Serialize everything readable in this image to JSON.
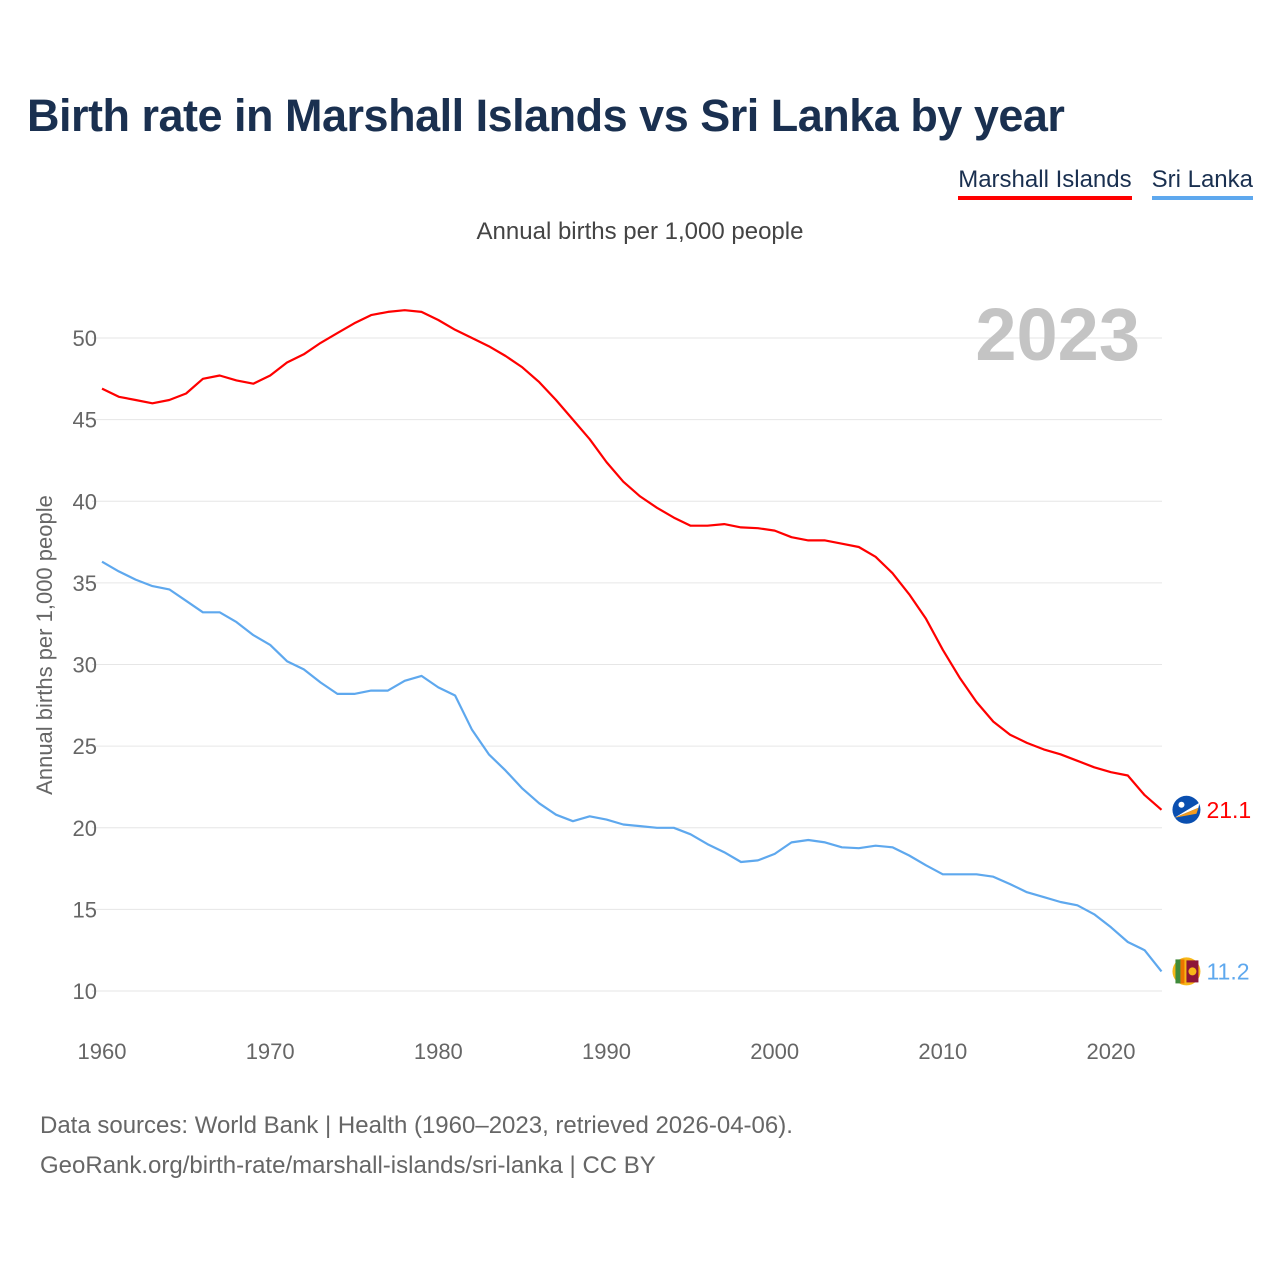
{
  "title": "Birth rate in Marshall Islands vs Sri Lanka by year",
  "subtitle": "Annual births per 1,000 people",
  "year_label": "2023",
  "footer": {
    "line1": "Data sources: World Bank | Health (1960–2023, retrieved 2026-04-06).",
    "line2": "GeoRank.org/birth-rate/marshall-islands/sri-lanka | CC BY"
  },
  "chart_data": {
    "type": "line",
    "title": "Birth rate in Marshall Islands vs Sri Lanka by year",
    "xlabel": "",
    "ylabel": "Annual births per 1,000 people",
    "xlim": [
      1960,
      2023
    ],
    "ylim": [
      8,
      53
    ],
    "xticks": [
      1960,
      1970,
      1980,
      1990,
      2000,
      2010,
      2020
    ],
    "yticks": [
      10,
      15,
      20,
      25,
      30,
      35,
      40,
      45,
      50
    ],
    "grid": true,
    "legend_position": "top-right",
    "x_start": 1960,
    "series": [
      {
        "name": "Marshall Islands",
        "color": "#ff0000",
        "end_label": "21.1",
        "flag": "marshall-islands-flag",
        "values": [
          46.9,
          46.4,
          46.2,
          46.0,
          46.2,
          46.6,
          47.5,
          47.7,
          47.4,
          47.2,
          47.7,
          48.5,
          49.0,
          49.7,
          50.3,
          50.9,
          51.4,
          51.6,
          51.7,
          51.6,
          51.1,
          50.5,
          50.0,
          49.5,
          48.9,
          48.2,
          47.3,
          46.2,
          45.0,
          43.8,
          42.4,
          41.2,
          40.3,
          39.6,
          39.0,
          38.5,
          38.5,
          38.6,
          38.4,
          38.35,
          38.2,
          37.8,
          37.6,
          37.6,
          37.4,
          37.2,
          36.6,
          35.6,
          34.3,
          32.8,
          30.9,
          29.2,
          27.7,
          26.5,
          25.7,
          25.2,
          24.8,
          24.5,
          24.1,
          23.7,
          23.4,
          23.2,
          22.0,
          21.1
        ]
      },
      {
        "name": "Sri Lanka",
        "color": "#5ea8ee",
        "end_label": "11.2",
        "flag": "sri-lanka-flag",
        "values": [
          36.3,
          35.7,
          35.2,
          34.8,
          34.6,
          33.9,
          33.2,
          33.2,
          32.6,
          31.8,
          31.2,
          30.2,
          29.7,
          28.9,
          28.2,
          28.2,
          28.4,
          28.4,
          29.0,
          29.3,
          28.6,
          28.1,
          26.0,
          24.5,
          23.5,
          22.4,
          21.5,
          20.8,
          20.4,
          20.7,
          20.5,
          20.2,
          20.1,
          20.0,
          20.0,
          19.6,
          19.0,
          18.5,
          17.9,
          18.0,
          18.4,
          19.1,
          19.25,
          19.1,
          18.8,
          18.75,
          18.9,
          18.8,
          18.3,
          17.7,
          17.15,
          17.15,
          17.15,
          17.0,
          16.55,
          16.05,
          15.75,
          15.45,
          15.25,
          14.7,
          13.9,
          13.0,
          12.5,
          11.2
        ]
      }
    ]
  }
}
